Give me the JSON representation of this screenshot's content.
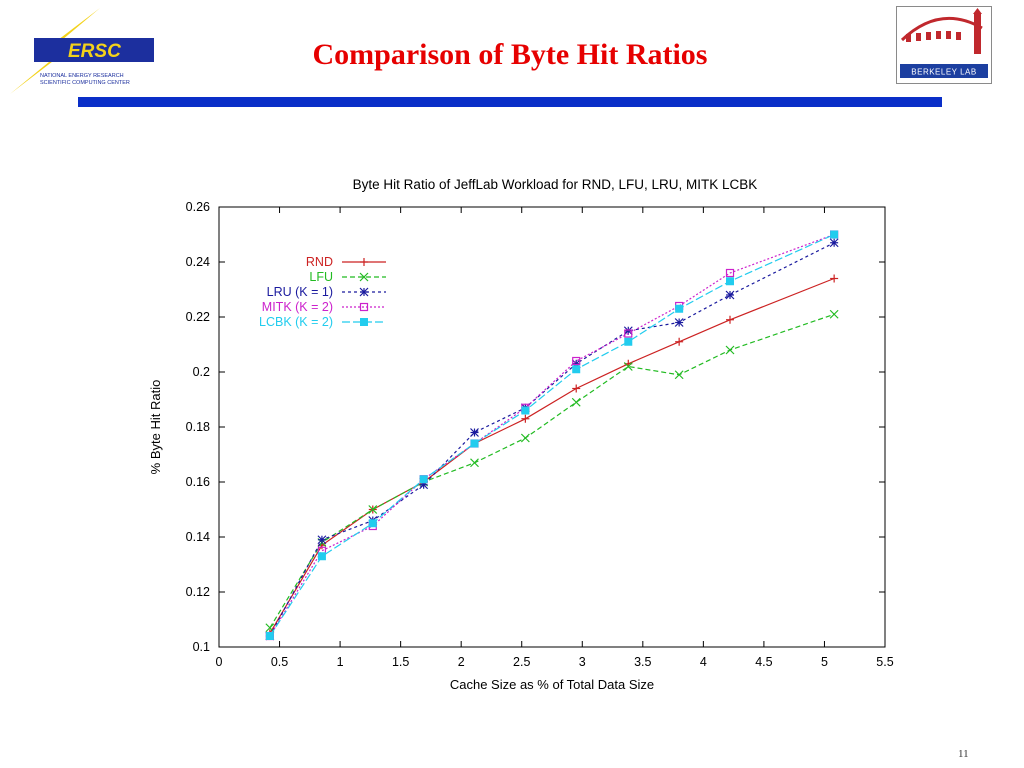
{
  "header": {
    "title": "Comparison of Byte Hit Ratios",
    "left_logo": {
      "name": "nersc-logo",
      "text": "ERSC",
      "subtitle_line1": "NATIONAL ENERGY RESEARCH",
      "subtitle_line2": "SCIENTIFIC COMPUTING CENTER"
    },
    "right_logo": {
      "name": "berkeley-lab-logo",
      "text": "BERKELEY LAB"
    },
    "rule_color": "#0a2fc8"
  },
  "page_number": "11",
  "chart_data": {
    "type": "line",
    "title": "Byte Hit Ratio of JeffLab Workload for RND, LFU, LRU, MITK  LCBK",
    "xlabel": "Cache Size as % of Total Data Size",
    "ylabel": "% Byte Hit Ratio",
    "xlim": [
      0,
      5.5
    ],
    "ylim": [
      0.1,
      0.26
    ],
    "x_ticks": [
      "0",
      "0.5",
      "1",
      "1.5",
      "2",
      "2.5",
      "3",
      "3.5",
      "4",
      "4.5",
      "5",
      "5.5"
    ],
    "y_ticks": [
      "0.1",
      "0.12",
      "0.14",
      "0.16",
      "0.18",
      "0.2",
      "0.22",
      "0.24",
      "0.26"
    ],
    "legend_position": "top-left",
    "grid": false,
    "series": [
      {
        "name": "RND",
        "color": "#cc2222",
        "dash": "",
        "marker": "plus",
        "x": [
          0.42,
          0.85,
          1.27,
          1.69,
          2.11,
          2.53,
          2.95,
          3.38,
          3.8,
          4.22,
          5.08
        ],
        "y": [
          0.105,
          0.137,
          0.15,
          0.16,
          0.174,
          0.183,
          0.194,
          0.203,
          0.211,
          0.219,
          0.234
        ]
      },
      {
        "name": "LFU",
        "color": "#22bb22",
        "dash": "5,3",
        "marker": "x",
        "x": [
          0.42,
          0.85,
          1.27,
          1.69,
          2.11,
          2.53,
          2.95,
          3.38,
          3.8,
          4.22,
          5.08
        ],
        "y": [
          0.107,
          0.138,
          0.15,
          0.16,
          0.167,
          0.176,
          0.189,
          0.202,
          0.199,
          0.208,
          0.221
        ]
      },
      {
        "name": "LRU (K = 1)",
        "color": "#1a1a9e",
        "dash": "3,3",
        "marker": "star",
        "x": [
          0.42,
          0.85,
          1.27,
          1.69,
          2.11,
          2.53,
          2.95,
          3.38,
          3.8,
          4.22,
          5.08
        ],
        "y": [
          0.104,
          0.139,
          0.146,
          0.159,
          0.178,
          0.187,
          0.203,
          0.215,
          0.218,
          0.228,
          0.247
        ]
      },
      {
        "name": "MITK (K = 2)",
        "color": "#cc22cc",
        "dash": "2,2",
        "marker": "square-open",
        "x": [
          0.42,
          0.85,
          1.27,
          1.69,
          2.11,
          2.53,
          2.95,
          3.38,
          3.8,
          4.22,
          5.08
        ],
        "y": [
          0.104,
          0.135,
          0.144,
          0.161,
          0.174,
          0.187,
          0.204,
          0.214,
          0.224,
          0.236,
          0.25
        ]
      },
      {
        "name": "LCBK (K = 2)",
        "color": "#22ccee",
        "dash": "8,3",
        "marker": "square-filled",
        "x": [
          0.42,
          0.85,
          1.27,
          1.69,
          2.11,
          2.53,
          2.95,
          3.38,
          3.8,
          4.22,
          5.08
        ],
        "y": [
          0.104,
          0.133,
          0.145,
          0.161,
          0.174,
          0.186,
          0.201,
          0.211,
          0.223,
          0.233,
          0.25
        ]
      }
    ]
  }
}
